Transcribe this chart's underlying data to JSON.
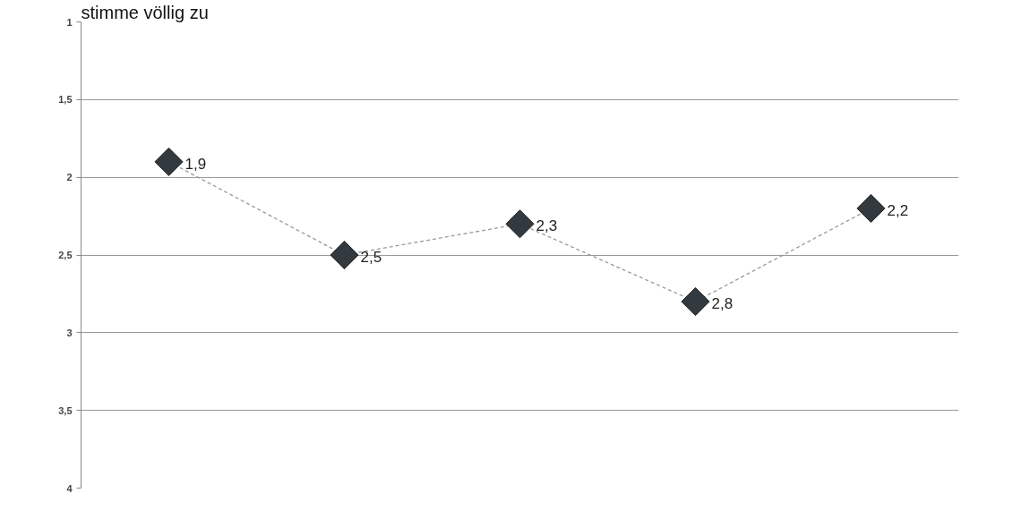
{
  "chart_data": {
    "type": "line",
    "categories": [
      null,
      null,
      null,
      null,
      null
    ],
    "series": [
      {
        "color": "#333a3f",
        "values": [
          1.9,
          2.5,
          2.3,
          2.8,
          2.2
        ],
        "value_labels": [
          "1,9",
          "2,5",
          "2,3",
          "2,8",
          "2,2"
        ]
      }
    ],
    "ylim": [
      4,
      1
    ],
    "yticks": [
      1,
      {
        "value": 1.5,
        "label": "1,5"
      },
      2,
      {
        "value": 2.5,
        "label": "2,5"
      },
      3,
      {
        "value": 3.5,
        "label": "3,5"
      },
      4
    ],
    "grid": "y",
    "marker": "diamond",
    "line_style": "dashed",
    "annotations": [
      "stimme völlig zu"
    ]
  }
}
